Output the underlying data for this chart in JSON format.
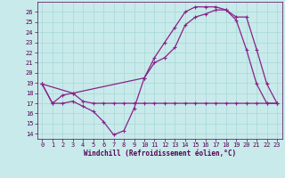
{
  "xlabel": "Windchill (Refroidissement éolien,°C)",
  "background_color": "#c8eaea",
  "grid_color": "#a8d8d8",
  "line_color": "#882288",
  "xlim": [
    -0.5,
    23.5
  ],
  "ylim": [
    13.5,
    27.0
  ],
  "yticks": [
    14,
    15,
    16,
    17,
    18,
    19,
    20,
    21,
    22,
    23,
    24,
    25,
    26
  ],
  "xticks": [
    0,
    1,
    2,
    3,
    4,
    5,
    6,
    7,
    8,
    9,
    10,
    11,
    12,
    13,
    14,
    15,
    16,
    17,
    18,
    19,
    20,
    21,
    22,
    23
  ],
  "line1_x": [
    0,
    1,
    2,
    3,
    4,
    5,
    6,
    7,
    8,
    9,
    10,
    11,
    12,
    13,
    14,
    15,
    16,
    17,
    18,
    19,
    20,
    21,
    22,
    23
  ],
  "line1_y": [
    18.9,
    17.0,
    17.0,
    17.2,
    16.7,
    16.2,
    15.2,
    13.9,
    14.3,
    16.5,
    19.5,
    21.0,
    21.5,
    22.5,
    24.7,
    25.5,
    25.8,
    26.2,
    26.2,
    25.2,
    22.3,
    18.9,
    17.0,
    17.0
  ],
  "line2_x": [
    0,
    1,
    2,
    3,
    4,
    5,
    6,
    7,
    8,
    9,
    10,
    11,
    12,
    13,
    14,
    15,
    16,
    17,
    18,
    19,
    20,
    21,
    22,
    23
  ],
  "line2_y": [
    18.9,
    17.0,
    17.8,
    18.0,
    17.2,
    17.0,
    17.0,
    17.0,
    17.0,
    17.0,
    17.0,
    17.0,
    17.0,
    17.0,
    17.0,
    17.0,
    17.0,
    17.0,
    17.0,
    17.0,
    17.0,
    17.0,
    17.0,
    17.0
  ],
  "line3_x": [
    0,
    3,
    10,
    11,
    12,
    13,
    14,
    15,
    16,
    17,
    18,
    19,
    20,
    21,
    22,
    23
  ],
  "line3_y": [
    18.9,
    18.0,
    19.5,
    21.5,
    23.0,
    24.5,
    26.0,
    26.5,
    26.5,
    26.5,
    26.2,
    25.5,
    25.5,
    22.3,
    18.9,
    17.0
  ],
  "tick_fontsize": 5,
  "xlabel_fontsize": 5.5,
  "marker_size": 3,
  "linewidth": 0.9
}
